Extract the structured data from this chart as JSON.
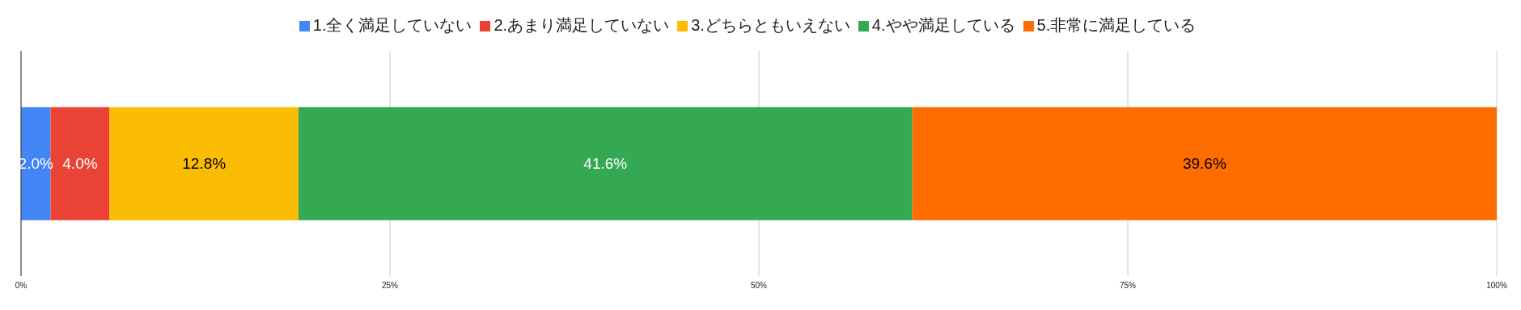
{
  "chart_data": {
    "type": "bar",
    "orientation": "horizontal",
    "stacked": true,
    "categories": [
      null
    ],
    "series": [
      {
        "name": "1.全く満足していない",
        "color": "#4285f4",
        "values": [
          2.0
        ],
        "value_labels": [
          "2.0%"
        ]
      },
      {
        "name": "2.あまり満足していない",
        "color": "#ea4335",
        "values": [
          4.0
        ],
        "value_labels": [
          "4.0%"
        ]
      },
      {
        "name": "3.どちらともいえない",
        "color": "#fbbc04",
        "values": [
          12.8
        ],
        "value_labels": [
          "12.8%"
        ]
      },
      {
        "name": "4.やや満足している",
        "color": "#34a853",
        "values": [
          41.6
        ],
        "value_labels": [
          "41.6%"
        ]
      },
      {
        "name": "5.非常に満足している",
        "color": "#ff6d01",
        "values": [
          39.6
        ],
        "value_labels": [
          "39.6%"
        ]
      }
    ],
    "xlim": [
      0,
      100
    ],
    "xticks": [
      {
        "value": 0,
        "label": "0%"
      },
      {
        "value": 25,
        "label": "25%"
      },
      {
        "value": 50,
        "label": "50%"
      },
      {
        "value": 75,
        "label": "75%"
      },
      {
        "value": 100,
        "label": "100%"
      }
    ],
    "grid": "x",
    "legend": "top"
  }
}
